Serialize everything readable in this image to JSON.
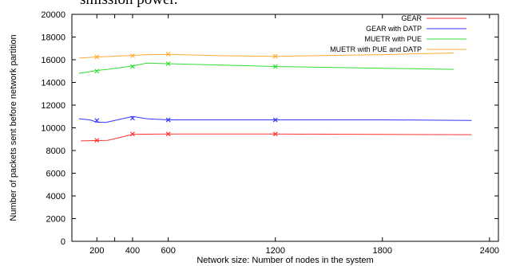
{
  "page": {
    "top_fragment": "smission power."
  },
  "chart_data": {
    "type": "line",
    "title": "",
    "xlabel": "Network size: Number of nodes in the system",
    "ylabel": "Number of packets sent before network partition",
    "xlim": [
      60,
      2450
    ],
    "ylim": [
      0,
      20000
    ],
    "x_ticks": [
      200,
      300,
      400,
      600,
      1200,
      1800,
      2400
    ],
    "x_tick_labels": [
      "200",
      "",
      "400",
      "600",
      "1200",
      "1800",
      "2400"
    ],
    "y_ticks": [
      0,
      2000,
      4000,
      6000,
      8000,
      10000,
      12000,
      14000,
      16000,
      18000,
      20000
    ],
    "grid": false,
    "legend_position": "top-right",
    "series": [
      {
        "name": "GEAR",
        "color": "#ff3333",
        "x": [
          110,
          160,
          200,
          260,
          330,
          400,
          600,
          1200,
          1800,
          2300
        ],
        "y": [
          8850,
          8870,
          8880,
          8900,
          9150,
          9430,
          9450,
          9450,
          9420,
          9400
        ],
        "markers": [
          [
            200,
            8900
          ],
          [
            400,
            9450
          ],
          [
            600,
            9450
          ],
          [
            1200,
            9450
          ]
        ]
      },
      {
        "name": "GEAR with DATP",
        "color": "#3333ff",
        "x": [
          100,
          160,
          200,
          250,
          330,
          400,
          480,
          600,
          1200,
          1800,
          2300
        ],
        "y": [
          10800,
          10700,
          10500,
          10480,
          10750,
          11000,
          10800,
          10700,
          10700,
          10700,
          10650
        ],
        "markers": [
          [
            200,
            10650
          ],
          [
            400,
            10850
          ],
          [
            600,
            10700
          ],
          [
            1200,
            10700
          ]
        ]
      },
      {
        "name": "MUETR with PUE",
        "color": "#33dd33",
        "x": [
          100,
          160,
          200,
          260,
          330,
          400,
          480,
          600,
          1200,
          1800,
          2200
        ],
        "y": [
          14800,
          14950,
          15050,
          15150,
          15300,
          15450,
          15700,
          15650,
          15400,
          15250,
          15150
        ],
        "markers": [
          [
            200,
            15000
          ],
          [
            400,
            15400
          ],
          [
            600,
            15650
          ],
          [
            1200,
            15400
          ]
        ]
      },
      {
        "name": "MUETR with PUE and DATP",
        "color": "#ffaa33",
        "x": [
          100,
          160,
          200,
          260,
          330,
          400,
          480,
          600,
          900,
          1200,
          1800,
          2200
        ],
        "y": [
          16150,
          16200,
          16250,
          16280,
          16330,
          16380,
          16450,
          16480,
          16350,
          16300,
          16450,
          16600
        ],
        "markers": [
          [
            200,
            16250
          ],
          [
            400,
            16350
          ],
          [
            600,
            16500
          ],
          [
            1200,
            16300
          ]
        ]
      }
    ]
  }
}
